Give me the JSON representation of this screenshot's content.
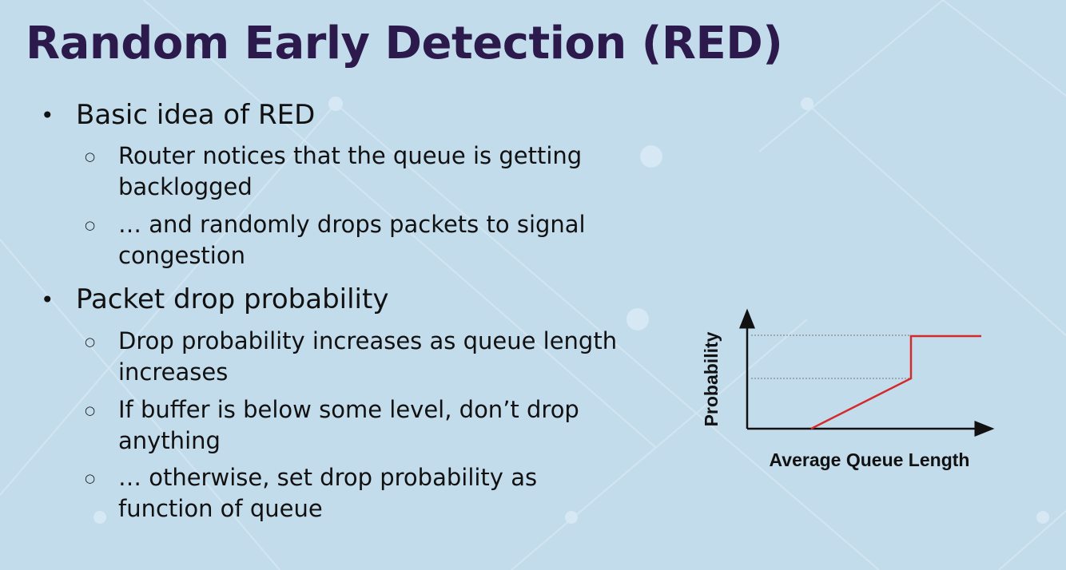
{
  "title": "Random Early Detection (RED)",
  "bullets": [
    {
      "text": "Basic idea of RED",
      "items": [
        "Router notices that the queue is getting backlogged",
        "… and randomly drops packets to signal congestion"
      ]
    },
    {
      "text": "Packet drop probability",
      "items": [
        "Drop probability increases as queue length increases",
        "If buffer is below some level, don’t drop anything",
        "… otherwise, set drop probability as function of queue"
      ]
    }
  ],
  "diagram": {
    "y_label": "Probability",
    "x_label": "Average Queue Length"
  }
}
